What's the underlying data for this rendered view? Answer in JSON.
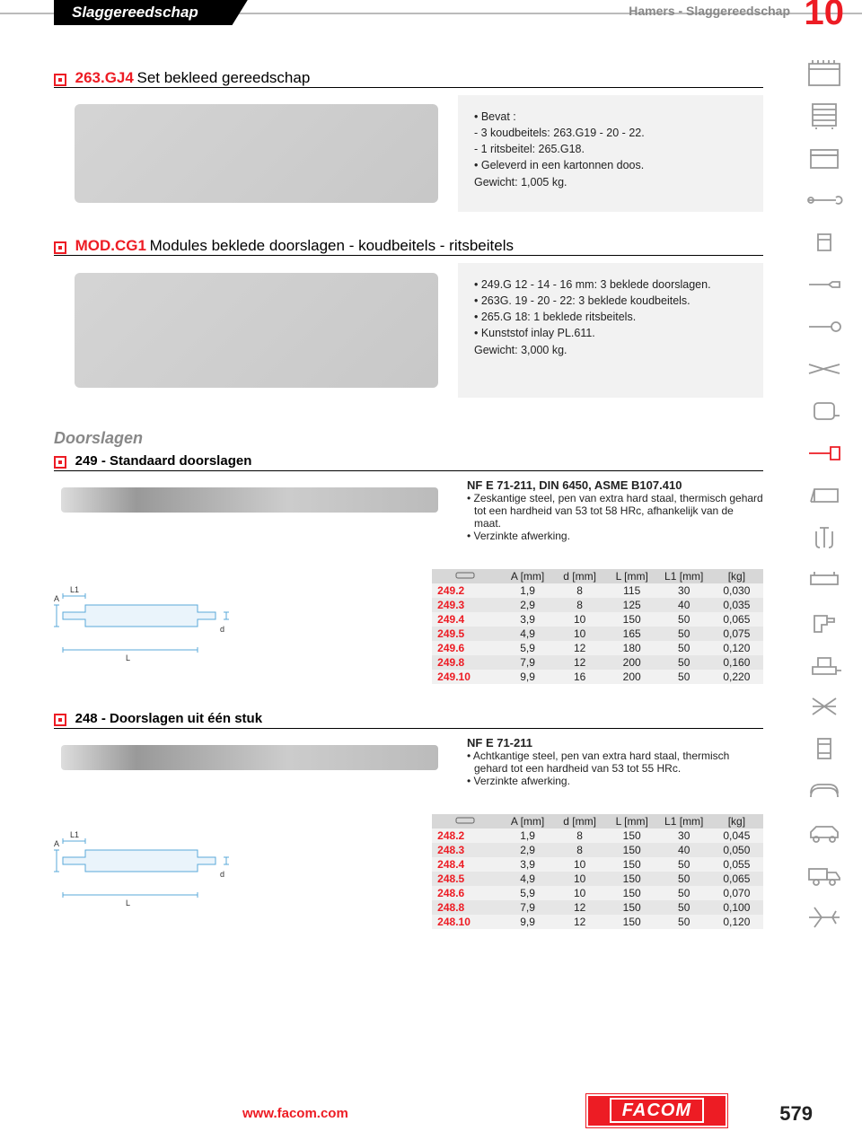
{
  "header": {
    "category": "Slaggereedschap",
    "breadcrumb": "Hamers - Slaggereedschap",
    "chapter": "10"
  },
  "sections": [
    {
      "code": "263.GJ4",
      "name": "Set bekleed gereedschap",
      "desc": [
        "• Bevat :",
        "- 3 koudbeitels: 263.G19 - 20 - 22.",
        "- 1 ritsbeitel: 265.G18.",
        "• Geleverd in een kartonnen doos.",
        "Gewicht: 1,005 kg."
      ]
    },
    {
      "code": "MOD.CG1",
      "name": "Modules beklede doorslagen - koudbeitels - ritsbeitels",
      "desc": [
        "• 249.G 12 - 14 - 16 mm: 3 beklede doorslagen.",
        "• 263G. 19 - 20 - 22: 3 beklede koudbeitels.",
        "• 265.G 18: 1 beklede ritsbeitels.",
        "• Kunststof inlay PL.611.",
        "Gewicht: 3,000 kg."
      ]
    }
  ],
  "doorslagen": {
    "heading": "Doorslagen",
    "sub1": {
      "code": "249",
      "name": "Standaard doorslagen",
      "nf": "NF E 71-211, DIN 6450, ASME B107.410",
      "bullets": [
        "• Zeskantige steel, pen van extra hard staal, thermisch gehard tot een hardheid van 53 tot 58 HRc, afhankelijk van de maat.",
        "• Verzinkte afwerking."
      ],
      "headers": [
        "A [mm]",
        "d [mm]",
        "L [mm]",
        "L1 [mm]",
        "[kg]"
      ],
      "rows": [
        [
          "249.2",
          "1,9",
          "8",
          "115",
          "30",
          "0,030"
        ],
        [
          "249.3",
          "2,9",
          "8",
          "125",
          "40",
          "0,035"
        ],
        [
          "249.4",
          "3,9",
          "10",
          "150",
          "50",
          "0,065"
        ],
        [
          "249.5",
          "4,9",
          "10",
          "165",
          "50",
          "0,075"
        ],
        [
          "249.6",
          "5,9",
          "12",
          "180",
          "50",
          "0,120"
        ],
        [
          "249.8",
          "7,9",
          "12",
          "200",
          "50",
          "0,160"
        ],
        [
          "249.10",
          "9,9",
          "16",
          "200",
          "50",
          "0,220"
        ]
      ]
    },
    "sub2": {
      "code": "248",
      "name": "Doorslagen uit één stuk",
      "nf": "NF E 71-211",
      "bullets": [
        "• Achtkantige steel, pen van extra hard staal, thermisch gehard tot een hardheid van 53 tot 55 HRc.",
        "• Verzinkte afwerking."
      ],
      "headers": [
        "A [mm]",
        "d [mm]",
        "L [mm]",
        "L1 [mm]",
        "[kg]"
      ],
      "rows": [
        [
          "248.2",
          "1,9",
          "8",
          "150",
          "30",
          "0,045"
        ],
        [
          "248.3",
          "2,9",
          "8",
          "150",
          "40",
          "0,050"
        ],
        [
          "248.4",
          "3,9",
          "10",
          "150",
          "50",
          "0,055"
        ],
        [
          "248.5",
          "4,9",
          "10",
          "150",
          "50",
          "0,065"
        ],
        [
          "248.6",
          "5,9",
          "10",
          "150",
          "50",
          "0,070"
        ],
        [
          "248.8",
          "7,9",
          "12",
          "150",
          "50",
          "0,100"
        ],
        [
          "248.10",
          "9,9",
          "12",
          "150",
          "50",
          "0,120"
        ]
      ]
    }
  },
  "footer": {
    "url": "www.facom.com",
    "logo": "FACOM",
    "page": "579"
  },
  "diagram_labels": {
    "L": "L",
    "L1": "L1",
    "A": "A",
    "d": "d"
  },
  "colors": {
    "accent": "#ed1c24",
    "grey": "#888888",
    "row_odd": "#f1f1f1",
    "row_even": "#e6e6e6"
  }
}
